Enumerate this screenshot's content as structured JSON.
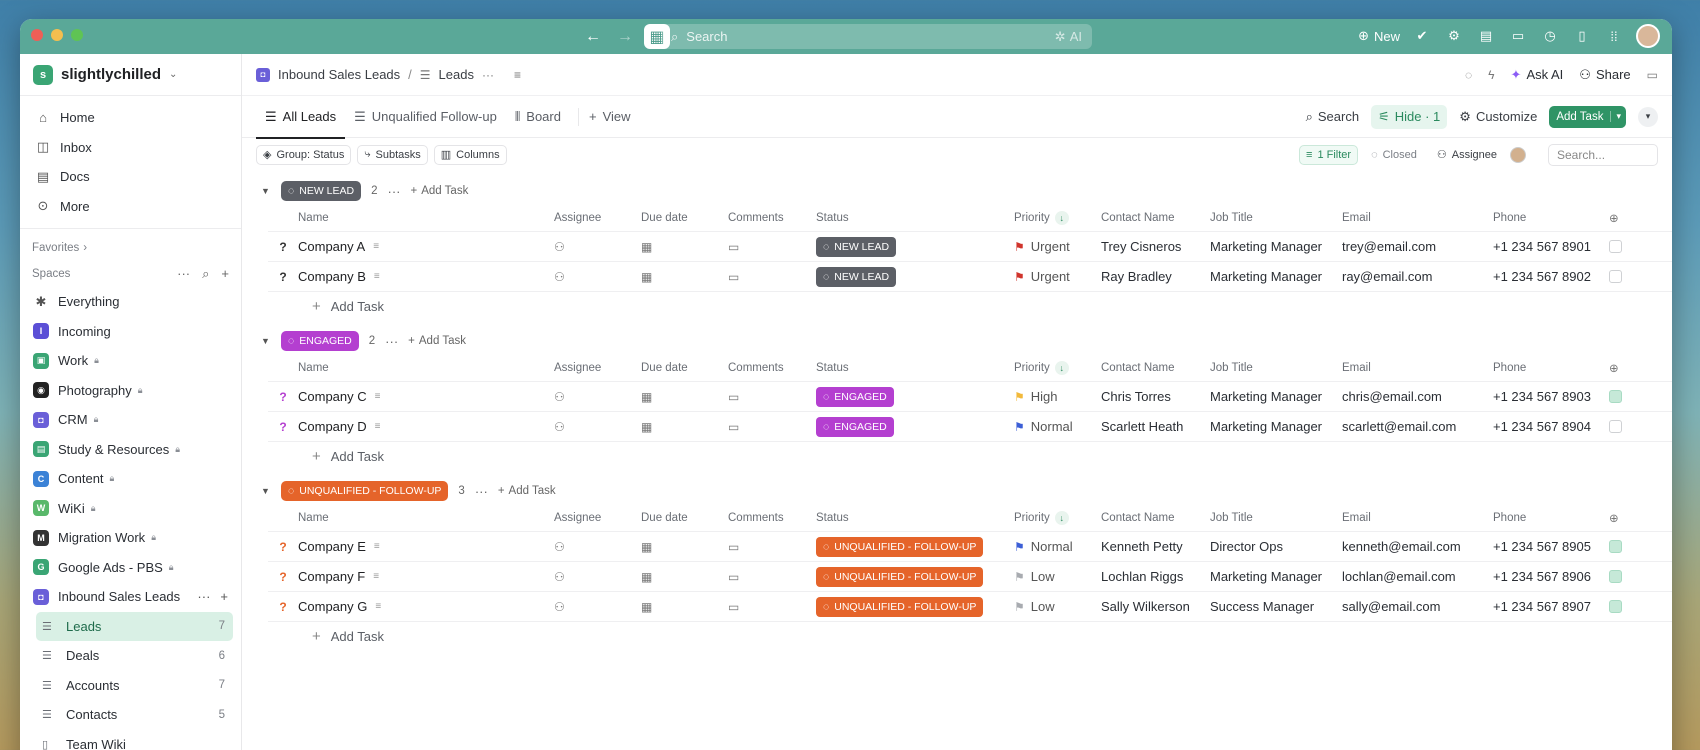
{
  "titlebar": {
    "search_placeholder": "Search",
    "ai_label": "AI",
    "new_label": "New"
  },
  "sidebar": {
    "workspace": "slightlychilled",
    "workspace_initial": "s",
    "nav": [
      {
        "label": "Home",
        "icon": "home-icon"
      },
      {
        "label": "Inbox",
        "icon": "inbox-icon"
      },
      {
        "label": "Docs",
        "icon": "docs-icon"
      },
      {
        "label": "More",
        "icon": "more-icon"
      }
    ],
    "favorites_label": "Favorites",
    "spaces_label": "Spaces",
    "spaces": [
      {
        "label": "Everything",
        "initial": "✱",
        "color": "transparent",
        "locked": false
      },
      {
        "label": "Incoming",
        "initial": "I",
        "color": "#5b4fd6",
        "locked": false
      },
      {
        "label": "Work",
        "initial": "▣",
        "color": "#3aa574",
        "locked": true
      },
      {
        "label": "Photography",
        "initial": "◉",
        "color": "#222222",
        "locked": true
      },
      {
        "label": "CRM",
        "initial": "◘",
        "color": "#6a5fd8",
        "locked": true
      },
      {
        "label": "Study & Resources",
        "initial": "▤",
        "color": "#3aa574",
        "locked": true
      },
      {
        "label": "Content",
        "initial": "C",
        "color": "#3b82d6",
        "locked": true
      },
      {
        "label": "WiKi",
        "initial": "W",
        "color": "#59b86a",
        "locked": true
      },
      {
        "label": "Migration Work",
        "initial": "M",
        "color": "#333333",
        "locked": true
      },
      {
        "label": "Google Ads - PBS",
        "initial": "G",
        "color": "#3aa574",
        "locked": true
      },
      {
        "label": "Inbound Sales Leads",
        "initial": "◘",
        "color": "#6a5fd8",
        "locked": false
      }
    ],
    "lists": [
      {
        "label": "Leads",
        "count": "7"
      },
      {
        "label": "Deals",
        "count": "6"
      },
      {
        "label": "Accounts",
        "count": "7"
      },
      {
        "label": "Contacts",
        "count": "5"
      },
      {
        "label": "Team Wiki",
        "count": ""
      }
    ]
  },
  "breadcrumb": {
    "space": "Inbound Sales Leads",
    "list": "Leads",
    "ask_ai": "Ask AI",
    "share": "Share"
  },
  "tabs": {
    "items": [
      "All Leads",
      "Unqualified Follow-up",
      "Board"
    ],
    "add_view": "View",
    "search": "Search",
    "hide": "Hide · 1",
    "customize": "Customize",
    "add_task": "Add Task"
  },
  "filters": {
    "group": "Group: Status",
    "subtasks": "Subtasks",
    "columns": "Columns",
    "filter": "1 Filter",
    "closed": "Closed",
    "assignee": "Assignee",
    "search_placeholder": "Search..."
  },
  "columns": [
    "Name",
    "Assignee",
    "Due date",
    "Comments",
    "Status",
    "Priority",
    "Contact Name",
    "Job Title",
    "Email",
    "Phone"
  ],
  "add_task_label": "Add Task",
  "groups": [
    {
      "status": "NEW LEAD",
      "count": "2",
      "color": "#5c5f66",
      "rows": [
        {
          "name": "Company A",
          "priority": "Urgent",
          "flag": "#d0342c",
          "contact": "Trey Cisneros",
          "job": "Marketing Manager",
          "email": "trey@email.com",
          "phone": "+1 234 567 8901",
          "done": false
        },
        {
          "name": "Company B",
          "priority": "Urgent",
          "flag": "#d0342c",
          "contact": "Ray Bradley",
          "job": "Marketing Manager",
          "email": "ray@email.com",
          "phone": "+1 234 567 8902",
          "done": false
        }
      ]
    },
    {
      "status": "ENGAGED",
      "count": "2",
      "color": "#b43fd0",
      "rows": [
        {
          "name": "Company C",
          "priority": "High",
          "flag": "#f2b93b",
          "contact": "Chris Torres",
          "job": "Marketing Manager",
          "email": "chris@email.com",
          "phone": "+1 234 567 8903",
          "done": true
        },
        {
          "name": "Company D",
          "priority": "Normal",
          "flag": "#3c5fd6",
          "contact": "Scarlett Heath",
          "job": "Marketing Manager",
          "email": "scarlett@email.com",
          "phone": "+1 234 567 8904",
          "done": false
        }
      ]
    },
    {
      "status": "UNQUALIFIED - FOLLOW-UP",
      "count": "3",
      "color": "#e5642a",
      "rows": [
        {
          "name": "Company E",
          "priority": "Normal",
          "flag": "#3c5fd6",
          "contact": "Kenneth Petty",
          "job": "Director Ops",
          "email": "kenneth@email.com",
          "phone": "+1 234 567 8905",
          "done": true
        },
        {
          "name": "Company F",
          "priority": "Low",
          "flag": "#a8abb0",
          "contact": "Lochlan Riggs",
          "job": "Marketing Manager",
          "email": "lochlan@email.com",
          "phone": "+1 234 567 8906",
          "done": true
        },
        {
          "name": "Company G",
          "priority": "Low",
          "flag": "#a8abb0",
          "contact": "Sally Wilkerson",
          "job": "Success Manager",
          "email": "sally@email.com",
          "phone": "+1 234 567 8907",
          "done": true
        }
      ]
    }
  ]
}
